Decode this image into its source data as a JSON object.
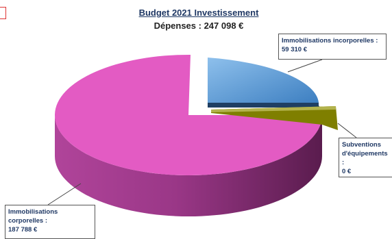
{
  "chart_data": {
    "type": "pie",
    "title": "Budget 2021 Investissement",
    "subtitle": "Dépenses : 247 098 €",
    "slices": [
      {
        "label": "Immobilisations incorporelles :",
        "value_label": "59 310 €",
        "value": 59310,
        "color": "#5b9bd5"
      },
      {
        "label": "Subventions d'équipements :",
        "value_label": "0 €",
        "value": 0,
        "color": "#7f7f00"
      },
      {
        "label": "Immobilisations corporelles :",
        "value_label": "187 788 €",
        "value": 187788,
        "color": "#e35bc3"
      }
    ]
  }
}
